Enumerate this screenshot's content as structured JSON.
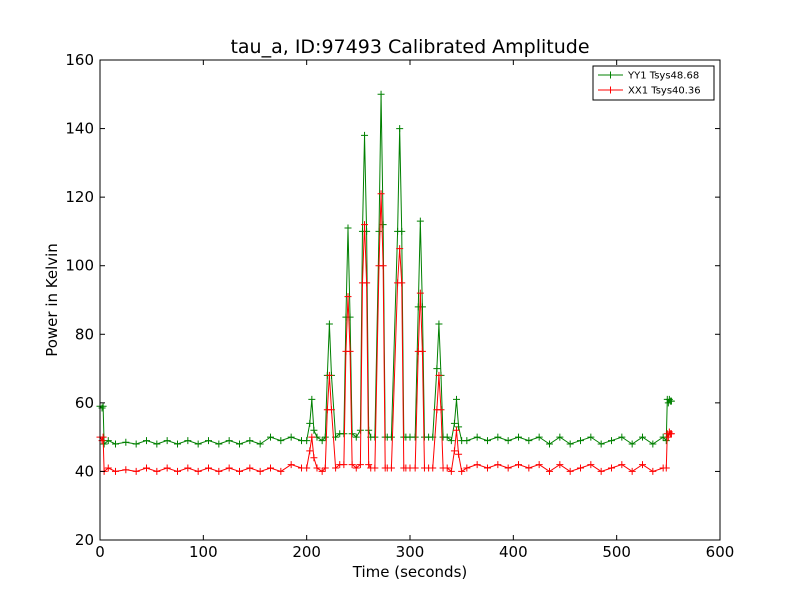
{
  "chart_data": {
    "type": "line",
    "title": "tau_a, ID:97493 Calibrated Amplitude",
    "xlabel": "Time (seconds)",
    "ylabel": "Power in Kelvin",
    "xlim": [
      0,
      600
    ],
    "ylim": [
      20,
      160
    ],
    "xticks": [
      0,
      100,
      200,
      300,
      400,
      500,
      600
    ],
    "yticks": [
      20,
      40,
      60,
      80,
      100,
      120,
      140,
      160
    ],
    "xtick_labels": [
      "0",
      "100",
      "200",
      "300",
      "400",
      "500",
      "600"
    ],
    "ytick_labels": [
      "20",
      "40",
      "60",
      "80",
      "100",
      "120",
      "140",
      "160"
    ],
    "grid": false,
    "legend_position": "top-right",
    "marker": "+",
    "series": [
      {
        "name": "YY1 Tsys48.68",
        "color": "#008000",
        "x": [
          0,
          2,
          3,
          4,
          8,
          15,
          25,
          35,
          45,
          55,
          65,
          75,
          85,
          95,
          105,
          115,
          125,
          135,
          145,
          155,
          165,
          175,
          185,
          195,
          200,
          203,
          205,
          207,
          210,
          215,
          218,
          220,
          222,
          224,
          228,
          232,
          236,
          238,
          240,
          242,
          244,
          248,
          252,
          254,
          256,
          258,
          260,
          262,
          266,
          270,
          272,
          274,
          276,
          278,
          282,
          288,
          290,
          292,
          294,
          296,
          300,
          305,
          308,
          310,
          312,
          314,
          318,
          322,
          326,
          328,
          330,
          332,
          336,
          340,
          343,
          345,
          347,
          350,
          355,
          365,
          375,
          385,
          395,
          405,
          415,
          425,
          435,
          445,
          455,
          465,
          475,
          485,
          495,
          505,
          515,
          525,
          535,
          545,
          548,
          549,
          550,
          551,
          552,
          553
        ],
        "y": [
          59,
          58.5,
          59,
          48,
          49,
          48,
          48.5,
          48,
          49,
          48,
          49,
          48,
          49,
          48,
          49,
          48,
          49,
          48,
          49,
          48,
          50,
          49,
          50,
          49,
          49,
          54,
          61,
          52,
          50,
          49,
          50,
          68,
          83,
          68,
          50,
          51,
          51,
          85,
          111,
          85,
          51,
          50,
          52,
          110,
          138,
          110,
          52,
          50,
          50,
          110,
          150,
          112,
          50,
          50,
          50,
          110,
          140,
          110,
          50,
          50,
          50,
          50,
          88,
          113,
          88,
          50,
          50,
          50,
          70,
          83,
          68,
          50,
          50,
          49,
          54,
          61,
          53,
          49,
          49,
          50,
          49,
          50,
          49,
          50,
          49,
          50,
          48,
          50,
          48,
          49,
          50,
          48,
          49,
          50,
          48,
          50,
          48,
          50,
          49,
          61,
          60,
          61,
          60.5,
          60.5
        ]
      },
      {
        "name": "XX1 Tsys40.36",
        "color": "#ff0000",
        "x": [
          0,
          2,
          3,
          4,
          8,
          15,
          25,
          35,
          45,
          55,
          65,
          75,
          85,
          95,
          105,
          115,
          125,
          135,
          145,
          155,
          165,
          175,
          185,
          195,
          200,
          203,
          205,
          207,
          210,
          215,
          218,
          220,
          222,
          224,
          228,
          232,
          236,
          238,
          240,
          242,
          244,
          248,
          252,
          254,
          256,
          258,
          260,
          262,
          266,
          270,
          272,
          274,
          276,
          278,
          282,
          288,
          290,
          292,
          294,
          296,
          300,
          305,
          308,
          310,
          312,
          314,
          318,
          322,
          326,
          328,
          330,
          332,
          336,
          340,
          343,
          345,
          347,
          350,
          355,
          365,
          375,
          385,
          395,
          405,
          415,
          425,
          435,
          445,
          455,
          465,
          475,
          485,
          495,
          505,
          515,
          525,
          535,
          545,
          548,
          549,
          550,
          551,
          552,
          553
        ],
        "y": [
          50,
          49,
          50,
          40,
          41,
          40,
          40.5,
          40,
          41,
          40,
          41,
          40,
          41,
          40,
          41,
          40,
          41,
          40,
          41,
          40,
          41,
          40,
          42,
          41,
          41,
          46,
          50,
          44,
          41,
          40,
          41,
          58,
          68,
          58,
          41,
          42,
          42,
          75,
          91,
          75,
          42,
          41,
          42,
          95,
          112,
          95,
          42,
          41,
          41,
          100,
          121,
          100,
          41,
          41,
          41,
          95,
          105,
          95,
          41,
          41,
          41,
          41,
          75,
          92,
          75,
          41,
          41,
          41,
          58,
          68,
          58,
          41,
          41,
          40,
          46,
          52,
          45,
          40,
          41,
          42,
          41,
          42,
          41,
          42,
          41,
          42,
          40,
          42,
          40,
          41,
          42,
          40,
          41,
          42,
          40,
          42,
          40,
          41,
          41,
          51,
          50,
          51.5,
          51,
          51
        ]
      }
    ]
  }
}
